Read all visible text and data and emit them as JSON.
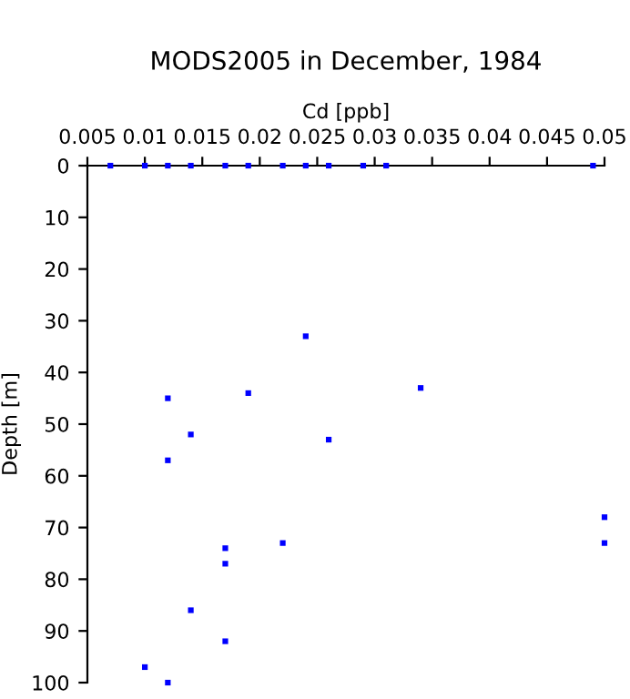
{
  "chart_data": {
    "type": "scatter",
    "title": "MODS2005 in December, 1984",
    "xlabel": "Cd [ppb]",
    "ylabel": "Depth [m]",
    "series": [
      {
        "color": "#0000ff",
        "x": [
          0.007,
          0.01,
          0.012,
          0.014,
          0.017,
          0.019,
          0.022,
          0.024,
          0.026,
          0.029,
          0.031,
          0.049,
          0.024,
          0.012,
          0.019,
          0.034,
          0.014,
          0.026,
          0.012,
          0.05,
          0.05,
          0.017,
          0.017,
          0.022,
          0.014,
          0.017,
          0.01,
          0.012
        ],
        "values": [
          0,
          0,
          0,
          0,
          0,
          0,
          0,
          0,
          0,
          0,
          0,
          0,
          33,
          45,
          44,
          43,
          52,
          53,
          57,
          68,
          73,
          74,
          77,
          73,
          86,
          92,
          97,
          100
        ]
      }
    ],
    "xlim": [
      0.005,
      0.05
    ],
    "xticks": [
      0.005,
      0.01,
      0.015,
      0.02,
      0.025,
      0.03,
      0.035,
      0.04,
      0.045,
      0.05
    ],
    "ylim": [
      100,
      0
    ],
    "yticks": [
      0,
      10,
      20,
      30,
      40,
      50,
      60,
      70,
      80,
      90,
      100
    ],
    "marker": "square",
    "grid": false,
    "legend": false
  }
}
